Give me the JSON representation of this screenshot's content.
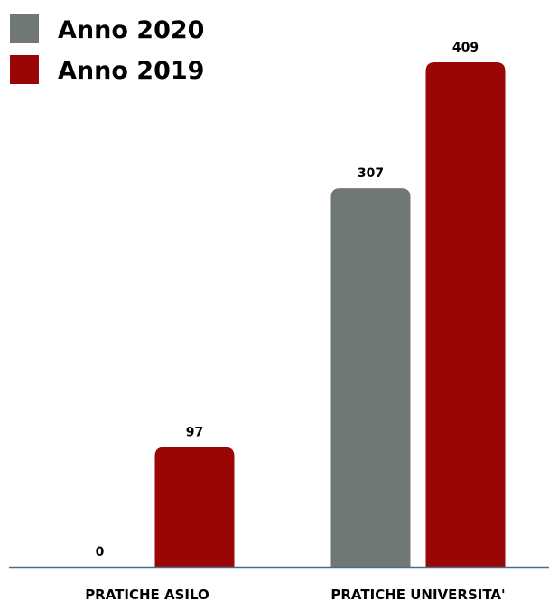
{
  "chart_data": {
    "type": "bar",
    "categories": [
      "PRATICHE ASILO",
      "PRATICHE UNIVERSITA'"
    ],
    "series": [
      {
        "name": "Anno 2020",
        "values": [
          0,
          307
        ],
        "color": "#717774"
      },
      {
        "name": "Anno 2019",
        "values": [
          97,
          409
        ],
        "color": "#9a0606"
      }
    ],
    "ylim": [
      0,
      420
    ],
    "grid": false,
    "legend_position": "top-left",
    "axis_color": "#4a6b8a"
  }
}
